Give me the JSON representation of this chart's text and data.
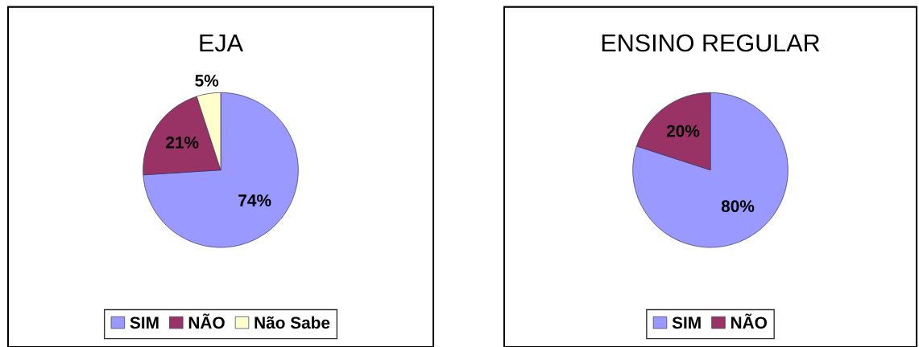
{
  "chart_data": [
    {
      "type": "pie",
      "title": "EJA",
      "categories": [
        "SIM",
        "NÃO",
        "Não Sabe"
      ],
      "values": [
        74,
        21,
        5
      ],
      "colors": [
        "#9999ff",
        "#993366",
        "#ffffcc"
      ],
      "value_labels": [
        "74%",
        "21%",
        "5%"
      ],
      "legend": "bottom"
    },
    {
      "type": "pie",
      "title": "ENSINO REGULAR",
      "categories": [
        "SIM",
        "NÃO"
      ],
      "values": [
        80,
        20
      ],
      "colors": [
        "#9999ff",
        "#993366"
      ],
      "value_labels": [
        "80%",
        "20%"
      ],
      "legend": "bottom"
    }
  ]
}
